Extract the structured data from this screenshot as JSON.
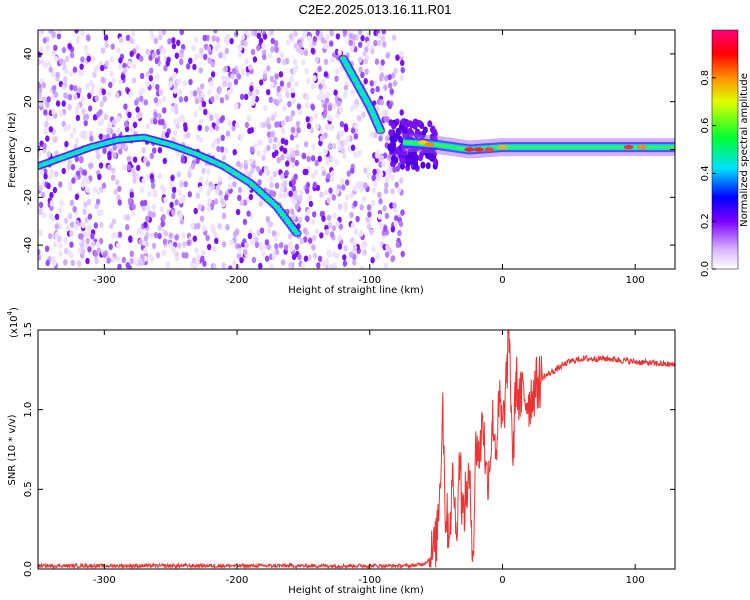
{
  "title": "C2E2.2025.013.16.11.R01",
  "chart_data": [
    {
      "type": "heatmap",
      "xlabel": "Height of straight line (km)",
      "ylabel": "Frequency (Hz)",
      "xlim": [
        -350,
        130
      ],
      "ylim": [
        -50,
        50
      ],
      "xticks": [
        -300,
        -200,
        -100,
        0,
        100
      ],
      "yticks": [
        -40,
        -20,
        0,
        20,
        40
      ],
      "colorbar": {
        "label": "Normalized spectral amplitude",
        "range": [
          0.0,
          1.0
        ],
        "ticks": [
          0.0,
          0.2,
          0.4,
          0.6,
          0.8
        ]
      },
      "features": [
        {
          "name": "arc",
          "points": [
            [
              -350,
              -7
            ],
            [
              -330,
              -3
            ],
            [
              -310,
              1
            ],
            [
              -290,
              4
            ],
            [
              -270,
              5
            ],
            [
              -250,
              2
            ],
            [
              -230,
              -2
            ],
            [
              -210,
              -7
            ],
            [
              -190,
              -14
            ],
            [
              -170,
              -24
            ],
            [
              -155,
              -35
            ]
          ]
        },
        {
          "name": "steep-line",
          "points": [
            [
              -120,
              38
            ],
            [
              -110,
              28
            ],
            [
              -100,
              18
            ],
            [
              -92,
              8
            ]
          ]
        },
        {
          "name": "carrier",
          "points": [
            [
              -75,
              3
            ],
            [
              -50,
              2
            ],
            [
              -25,
              0
            ],
            [
              0,
              1
            ],
            [
              50,
              1
            ],
            [
              100,
              1
            ],
            [
              130,
              1
            ]
          ]
        }
      ]
    },
    {
      "type": "line",
      "xlabel": "Height of straight line (km)",
      "ylabel": "SNR (10 * v/v)",
      "y_multiplier": "(x10",
      "y_multiplier_exp": "4",
      "xlim": [
        -350,
        130
      ],
      "ylim": [
        0,
        1.5
      ],
      "xticks": [
        -300,
        -200,
        -100,
        0,
        100
      ],
      "yticks": [
        "0.0",
        "0.5",
        "1.0",
        "1.5"
      ],
      "series": [
        {
          "x": [
            -350,
            -300,
            -250,
            -200,
            -150,
            -100,
            -70,
            -60,
            -55,
            -50,
            -47,
            -45,
            -43,
            -40,
            -37,
            -35,
            -32,
            -30,
            -27,
            -25,
            -22,
            -20,
            -17,
            -15,
            -12,
            -10,
            -7,
            -5,
            -2,
            0,
            3,
            5,
            8,
            10,
            13,
            15,
            20,
            25,
            30,
            40,
            50,
            60,
            80,
            100,
            130
          ],
          "y": [
            0.02,
            0.02,
            0.02,
            0.02,
            0.02,
            0.02,
            0.02,
            0.03,
            0.06,
            0.15,
            0.55,
            1.05,
            0.35,
            0.25,
            0.6,
            0.2,
            0.75,
            0.3,
            0.5,
            0.55,
            0.1,
            0.8,
            0.7,
            1.0,
            0.55,
            0.65,
            0.95,
            0.75,
            1.05,
            0.85,
            1.2,
            1.48,
            0.65,
            1.2,
            1.05,
            1.1,
            1.05,
            1.15,
            1.2,
            1.25,
            1.3,
            1.32,
            1.32,
            1.3,
            1.28
          ]
        }
      ]
    }
  ]
}
